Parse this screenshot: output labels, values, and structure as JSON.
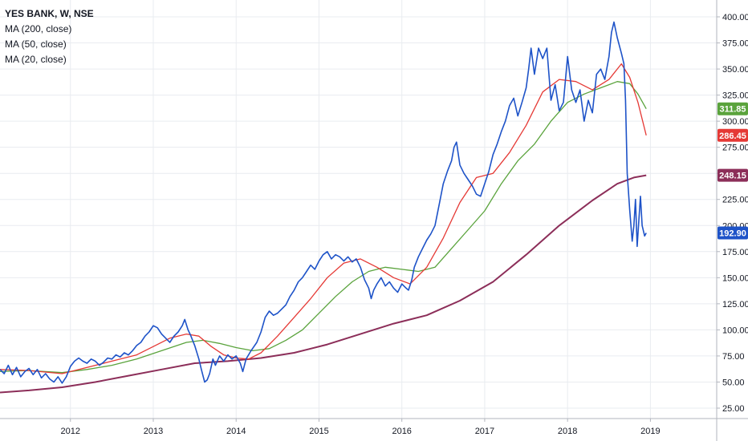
{
  "legend": {
    "symbol": "YES BANK, W, NSE",
    "ma200": "MA (200, close)",
    "ma50": "MA (50, close)",
    "ma20": "MA (20, close)"
  },
  "colors": {
    "price": "#1e53c8",
    "ma20": "#e53935",
    "ma50": "#5aa33c",
    "ma200": "#8c2e59",
    "grid": "#e9ecf0",
    "axis": "#b2b5be"
  },
  "chart_data": {
    "type": "line",
    "title": "YES BANK, W, NSE",
    "xlim": [
      2011.15,
      2019.8
    ],
    "ylim": [
      15,
      410
    ],
    "x_ticks": [
      {
        "x": 2012,
        "label": "2012"
      },
      {
        "x": 2013,
        "label": "2013"
      },
      {
        "x": 2014,
        "label": "2014"
      },
      {
        "x": 2015,
        "label": "2015"
      },
      {
        "x": 2016,
        "label": "2016"
      },
      {
        "x": 2017,
        "label": "2017"
      },
      {
        "x": 2018,
        "label": "2018"
      },
      {
        "x": 2019,
        "label": "2019"
      }
    ],
    "y_ticks": [
      {
        "y": 25,
        "label": "25.00"
      },
      {
        "y": 50,
        "label": "50.00"
      },
      {
        "y": 75,
        "label": "75.00"
      },
      {
        "y": 100,
        "label": "100.00"
      },
      {
        "y": 125,
        "label": "125.00"
      },
      {
        "y": 150,
        "label": "150.00"
      },
      {
        "y": 175,
        "label": "175.00"
      },
      {
        "y": 200,
        "label": "200.00"
      },
      {
        "y": 225,
        "label": "225.00"
      },
      {
        "y": 250,
        "label": "250.00"
      },
      {
        "y": 275,
        "label": "275.00"
      },
      {
        "y": 300,
        "label": "300.00"
      },
      {
        "y": 325,
        "label": "325.00"
      },
      {
        "y": 350,
        "label": "350.00"
      },
      {
        "y": 375,
        "label": "375.00"
      },
      {
        "y": 400,
        "label": "400.00"
      }
    ],
    "badges": [
      {
        "y": 311.85,
        "label": "311.85",
        "color": "#5aa33c"
      },
      {
        "y": 286.45,
        "label": "286.45",
        "color": "#e53935"
      },
      {
        "y": 248.15,
        "label": "248.15",
        "color": "#8c2e59"
      },
      {
        "y": 192.9,
        "label": "192.90",
        "color": "#1e53c8"
      }
    ],
    "series": [
      {
        "key": "price",
        "color": "#1e53c8",
        "width": 1.6,
        "points": [
          [
            2011.15,
            62
          ],
          [
            2011.2,
            58
          ],
          [
            2011.25,
            66
          ],
          [
            2011.3,
            57
          ],
          [
            2011.35,
            64
          ],
          [
            2011.4,
            55
          ],
          [
            2011.45,
            60
          ],
          [
            2011.5,
            63
          ],
          [
            2011.55,
            57
          ],
          [
            2011.6,
            62
          ],
          [
            2011.65,
            54
          ],
          [
            2011.7,
            58
          ],
          [
            2011.75,
            53
          ],
          [
            2011.8,
            50
          ],
          [
            2011.85,
            55
          ],
          [
            2011.9,
            49
          ],
          [
            2011.95,
            55
          ],
          [
            2012.0,
            65
          ],
          [
            2012.05,
            70
          ],
          [
            2012.1,
            73
          ],
          [
            2012.15,
            70
          ],
          [
            2012.2,
            68
          ],
          [
            2012.25,
            72
          ],
          [
            2012.3,
            70
          ],
          [
            2012.35,
            66
          ],
          [
            2012.4,
            69
          ],
          [
            2012.45,
            73
          ],
          [
            2012.5,
            72
          ],
          [
            2012.55,
            76
          ],
          [
            2012.6,
            74
          ],
          [
            2012.65,
            78
          ],
          [
            2012.7,
            76
          ],
          [
            2012.75,
            80
          ],
          [
            2012.8,
            85
          ],
          [
            2012.85,
            88
          ],
          [
            2012.9,
            94
          ],
          [
            2012.95,
            98
          ],
          [
            2013.0,
            104
          ],
          [
            2013.05,
            102
          ],
          [
            2013.1,
            96
          ],
          [
            2013.15,
            92
          ],
          [
            2013.2,
            88
          ],
          [
            2013.25,
            94
          ],
          [
            2013.3,
            98
          ],
          [
            2013.35,
            104
          ],
          [
            2013.38,
            110
          ],
          [
            2013.42,
            100
          ],
          [
            2013.45,
            95
          ],
          [
            2013.5,
            85
          ],
          [
            2013.55,
            72
          ],
          [
            2013.58,
            62
          ],
          [
            2013.62,
            50
          ],
          [
            2013.65,
            52
          ],
          [
            2013.68,
            58
          ],
          [
            2013.72,
            72
          ],
          [
            2013.75,
            66
          ],
          [
            2013.8,
            75
          ],
          [
            2013.85,
            70
          ],
          [
            2013.9,
            76
          ],
          [
            2013.95,
            72
          ],
          [
            2014.0,
            75
          ],
          [
            2014.05,
            68
          ],
          [
            2014.08,
            60
          ],
          [
            2014.12,
            72
          ],
          [
            2014.18,
            80
          ],
          [
            2014.25,
            88
          ],
          [
            2014.3,
            98
          ],
          [
            2014.35,
            112
          ],
          [
            2014.4,
            118
          ],
          [
            2014.45,
            114
          ],
          [
            2014.5,
            116
          ],
          [
            2014.55,
            120
          ],
          [
            2014.6,
            124
          ],
          [
            2014.65,
            132
          ],
          [
            2014.7,
            138
          ],
          [
            2014.75,
            146
          ],
          [
            2014.8,
            150
          ],
          [
            2014.85,
            156
          ],
          [
            2014.9,
            162
          ],
          [
            2014.95,
            158
          ],
          [
            2015.0,
            166
          ],
          [
            2015.05,
            172
          ],
          [
            2015.1,
            175
          ],
          [
            2015.15,
            168
          ],
          [
            2015.2,
            172
          ],
          [
            2015.25,
            170
          ],
          [
            2015.3,
            166
          ],
          [
            2015.35,
            170
          ],
          [
            2015.4,
            165
          ],
          [
            2015.45,
            168
          ],
          [
            2015.5,
            160
          ],
          [
            2015.55,
            148
          ],
          [
            2015.6,
            140
          ],
          [
            2015.63,
            130
          ],
          [
            2015.66,
            138
          ],
          [
            2015.7,
            144
          ],
          [
            2015.75,
            150
          ],
          [
            2015.8,
            142
          ],
          [
            2015.85,
            146
          ],
          [
            2015.9,
            140
          ],
          [
            2015.95,
            136
          ],
          [
            2016.0,
            144
          ],
          [
            2016.05,
            140
          ],
          [
            2016.08,
            138
          ],
          [
            2016.12,
            148
          ],
          [
            2016.15,
            160
          ],
          [
            2016.2,
            170
          ],
          [
            2016.25,
            178
          ],
          [
            2016.3,
            186
          ],
          [
            2016.35,
            192
          ],
          [
            2016.4,
            200
          ],
          [
            2016.45,
            220
          ],
          [
            2016.5,
            240
          ],
          [
            2016.55,
            252
          ],
          [
            2016.6,
            262
          ],
          [
            2016.63,
            275
          ],
          [
            2016.66,
            280
          ],
          [
            2016.7,
            258
          ],
          [
            2016.75,
            250
          ],
          [
            2016.8,
            244
          ],
          [
            2016.85,
            238
          ],
          [
            2016.9,
            230
          ],
          [
            2016.95,
            228
          ],
          [
            2017.0,
            240
          ],
          [
            2017.05,
            252
          ],
          [
            2017.1,
            268
          ],
          [
            2017.15,
            278
          ],
          [
            2017.2,
            290
          ],
          [
            2017.25,
            300
          ],
          [
            2017.3,
            315
          ],
          [
            2017.35,
            322
          ],
          [
            2017.4,
            305
          ],
          [
            2017.45,
            318
          ],
          [
            2017.5,
            332
          ],
          [
            2017.53,
            350
          ],
          [
            2017.56,
            370
          ],
          [
            2017.6,
            345
          ],
          [
            2017.65,
            370
          ],
          [
            2017.7,
            360
          ],
          [
            2017.75,
            370
          ],
          [
            2017.8,
            320
          ],
          [
            2017.85,
            335
          ],
          [
            2017.9,
            310
          ],
          [
            2017.95,
            318
          ],
          [
            2018.0,
            362
          ],
          [
            2018.05,
            330
          ],
          [
            2018.1,
            318
          ],
          [
            2018.15,
            330
          ],
          [
            2018.2,
            300
          ],
          [
            2018.25,
            320
          ],
          [
            2018.3,
            308
          ],
          [
            2018.35,
            345
          ],
          [
            2018.4,
            350
          ],
          [
            2018.45,
            340
          ],
          [
            2018.5,
            362
          ],
          [
            2018.53,
            385
          ],
          [
            2018.56,
            395
          ],
          [
            2018.6,
            380
          ],
          [
            2018.65,
            365
          ],
          [
            2018.68,
            355
          ],
          [
            2018.7,
            320
          ],
          [
            2018.72,
            250
          ],
          [
            2018.75,
            215
          ],
          [
            2018.78,
            185
          ],
          [
            2018.8,
            200
          ],
          [
            2018.82,
            225
          ],
          [
            2018.84,
            180
          ],
          [
            2018.86,
            205
          ],
          [
            2018.88,
            228
          ],
          [
            2018.9,
            200
          ],
          [
            2018.93,
            190
          ],
          [
            2018.95,
            192.9
          ]
        ]
      },
      {
        "key": "ma20",
        "color": "#e53935",
        "width": 1.3,
        "points": [
          [
            2011.15,
            62
          ],
          [
            2011.5,
            61
          ],
          [
            2011.9,
            58
          ],
          [
            2012.2,
            64
          ],
          [
            2012.5,
            70
          ],
          [
            2012.8,
            76
          ],
          [
            2013.0,
            84
          ],
          [
            2013.2,
            92
          ],
          [
            2013.4,
            96
          ],
          [
            2013.55,
            94
          ],
          [
            2013.7,
            84
          ],
          [
            2013.85,
            76
          ],
          [
            2014.0,
            73
          ],
          [
            2014.15,
            72
          ],
          [
            2014.3,
            78
          ],
          [
            2014.5,
            94
          ],
          [
            2014.7,
            112
          ],
          [
            2014.9,
            130
          ],
          [
            2015.1,
            150
          ],
          [
            2015.3,
            164
          ],
          [
            2015.5,
            168
          ],
          [
            2015.7,
            160
          ],
          [
            2015.9,
            150
          ],
          [
            2016.1,
            144
          ],
          [
            2016.3,
            160
          ],
          [
            2016.5,
            188
          ],
          [
            2016.7,
            222
          ],
          [
            2016.9,
            246
          ],
          [
            2017.1,
            250
          ],
          [
            2017.3,
            270
          ],
          [
            2017.5,
            296
          ],
          [
            2017.7,
            328
          ],
          [
            2017.9,
            340
          ],
          [
            2018.1,
            338
          ],
          [
            2018.3,
            330
          ],
          [
            2018.5,
            340
          ],
          [
            2018.65,
            355
          ],
          [
            2018.75,
            342
          ],
          [
            2018.85,
            318
          ],
          [
            2018.95,
            286.45
          ]
        ]
      },
      {
        "key": "ma50",
        "color": "#5aa33c",
        "width": 1.3,
        "points": [
          [
            2011.15,
            60
          ],
          [
            2011.5,
            61
          ],
          [
            2011.9,
            59
          ],
          [
            2012.2,
            62
          ],
          [
            2012.5,
            66
          ],
          [
            2012.8,
            72
          ],
          [
            2013.1,
            80
          ],
          [
            2013.4,
            88
          ],
          [
            2013.6,
            90
          ],
          [
            2013.8,
            87
          ],
          [
            2014.0,
            83
          ],
          [
            2014.2,
            80
          ],
          [
            2014.4,
            82
          ],
          [
            2014.6,
            90
          ],
          [
            2014.8,
            100
          ],
          [
            2015.0,
            116
          ],
          [
            2015.2,
            132
          ],
          [
            2015.4,
            146
          ],
          [
            2015.6,
            156
          ],
          [
            2015.8,
            160
          ],
          [
            2016.0,
            158
          ],
          [
            2016.2,
            156
          ],
          [
            2016.4,
            160
          ],
          [
            2016.6,
            178
          ],
          [
            2016.8,
            196
          ],
          [
            2017.0,
            214
          ],
          [
            2017.2,
            240
          ],
          [
            2017.4,
            262
          ],
          [
            2017.6,
            278
          ],
          [
            2017.8,
            300
          ],
          [
            2018.0,
            318
          ],
          [
            2018.2,
            326
          ],
          [
            2018.4,
            332
          ],
          [
            2018.6,
            338
          ],
          [
            2018.75,
            336
          ],
          [
            2018.85,
            326
          ],
          [
            2018.95,
            311.85
          ]
        ]
      },
      {
        "key": "ma200",
        "color": "#8c2e59",
        "width": 2.0,
        "points": [
          [
            2011.15,
            40
          ],
          [
            2011.5,
            42
          ],
          [
            2011.9,
            45
          ],
          [
            2012.3,
            50
          ],
          [
            2012.7,
            56
          ],
          [
            2013.1,
            62
          ],
          [
            2013.5,
            68
          ],
          [
            2013.9,
            70
          ],
          [
            2014.3,
            73
          ],
          [
            2014.7,
            78
          ],
          [
            2015.1,
            86
          ],
          [
            2015.5,
            96
          ],
          [
            2015.9,
            106
          ],
          [
            2016.3,
            114
          ],
          [
            2016.7,
            128
          ],
          [
            2017.1,
            146
          ],
          [
            2017.5,
            172
          ],
          [
            2017.9,
            200
          ],
          [
            2018.3,
            224
          ],
          [
            2018.6,
            240
          ],
          [
            2018.8,
            246
          ],
          [
            2018.95,
            248.15
          ]
        ]
      }
    ]
  }
}
